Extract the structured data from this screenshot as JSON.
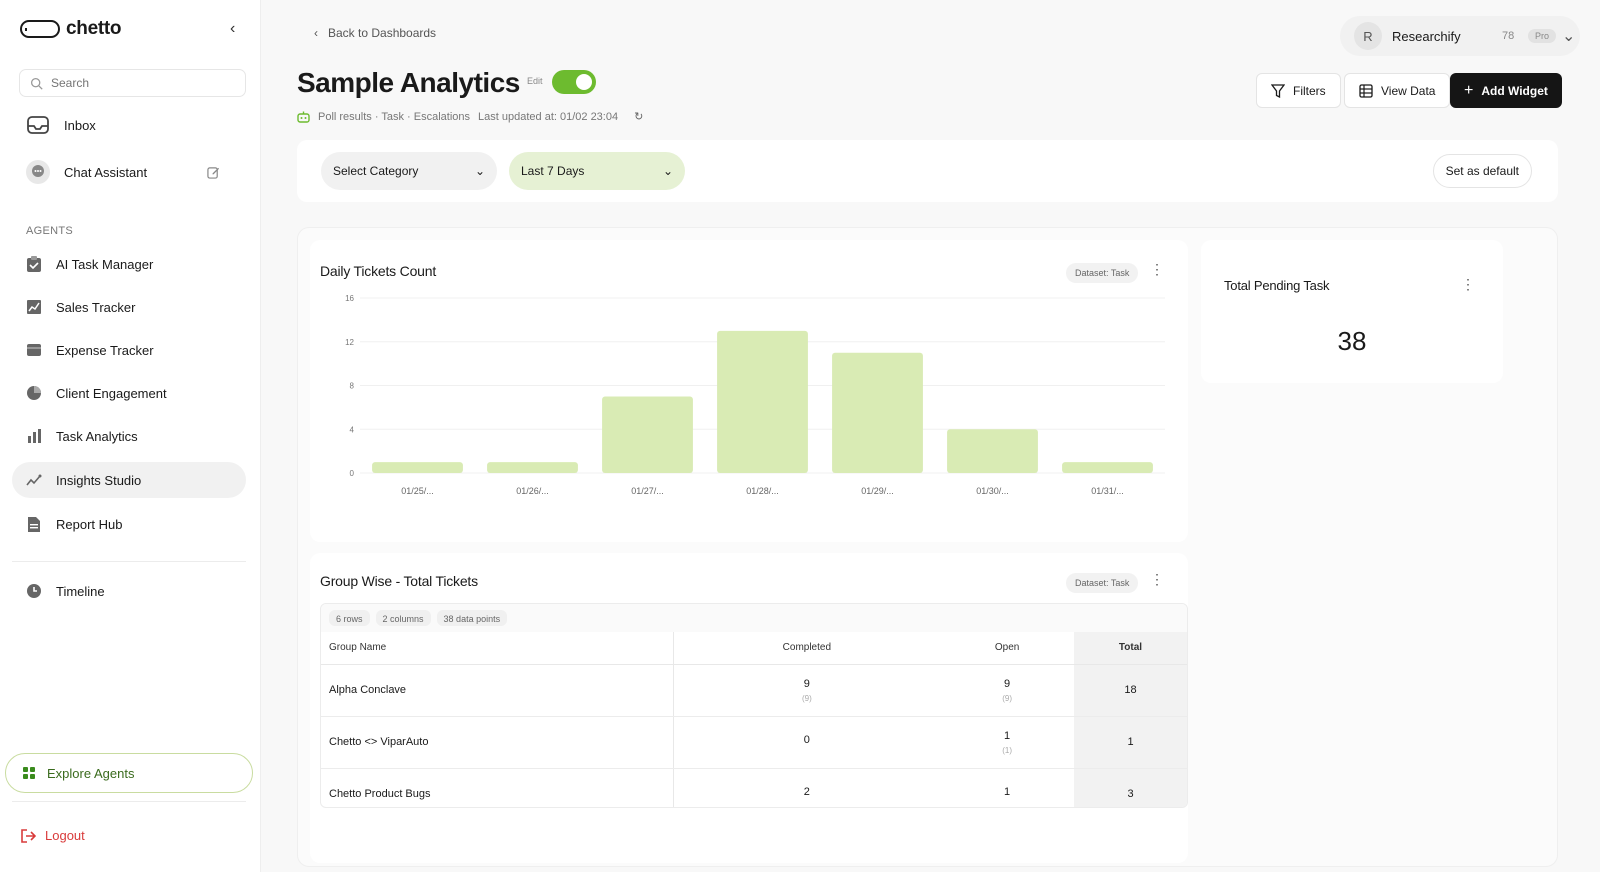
{
  "brand": {
    "name": "chetto"
  },
  "sidebar": {
    "search_placeholder": "Search",
    "top_items": [
      {
        "label": "Inbox",
        "icon": "inbox-icon"
      },
      {
        "label": "Chat Assistant",
        "icon": "chat-icon"
      }
    ],
    "section_label": "AGENTS",
    "agents": [
      {
        "label": "AI Task Manager",
        "icon": "clipboard-icon"
      },
      {
        "label": "Sales Tracker",
        "icon": "trend-chart-icon"
      },
      {
        "label": "Expense Tracker",
        "icon": "wallet-icon"
      },
      {
        "label": "Client Engagement",
        "icon": "pie-chart-icon"
      },
      {
        "label": "Task Analytics",
        "icon": "bar-chart-icon"
      },
      {
        "label": "Insights Studio",
        "icon": "insights-icon"
      },
      {
        "label": "Report Hub",
        "icon": "document-icon"
      }
    ],
    "timeline_label": "Timeline",
    "explore_label": "Explore Agents",
    "logout_label": "Logout"
  },
  "header": {
    "back_label": "Back to Dashboards",
    "title": "Sample Analytics",
    "edit_label": "Edit",
    "subline": "Poll results · Task · Escalations",
    "last_updated": "Last updated at: 01/02 23:04",
    "account": {
      "initial": "R",
      "name": "Researchify",
      "count": "78",
      "badge": "Pro"
    },
    "buttons": {
      "filters": "Filters",
      "view_data": "View Data",
      "add_widget": "Add Widget"
    }
  },
  "filters": {
    "category": "Select Category",
    "range": "Last 7 Days",
    "set_default": "Set as default"
  },
  "widgets": {
    "daily": {
      "title": "Daily Tickets Count",
      "dataset": "Dataset: Task"
    },
    "pending": {
      "title": "Total Pending Task",
      "value": "38"
    },
    "group": {
      "title": "Group Wise - Total Tickets",
      "dataset": "Dataset: Task",
      "chips": [
        "6 rows",
        "2 columns",
        "38 data points"
      ],
      "columns": [
        "Group Name",
        "Completed",
        "Open",
        "Total"
      ],
      "rows": [
        {
          "name": "Alpha Conclave",
          "completed": "9",
          "completed_sub": "(9)",
          "open": "9",
          "open_sub": "(9)",
          "total": "18"
        },
        {
          "name": "Chetto <> ViparAuto",
          "completed": "0",
          "completed_sub": "",
          "open": "1",
          "open_sub": "(1)",
          "total": "1"
        },
        {
          "name": "Chetto Product Bugs",
          "completed": "2",
          "completed_sub": "",
          "open": "1",
          "open_sub": "",
          "total": "3"
        }
      ]
    }
  },
  "colors": {
    "accent": "#6dbb2f",
    "bar": "#d9ebb4",
    "dark": "#151515",
    "danger": "#d93b3b"
  },
  "chart_data": {
    "type": "bar",
    "title": "Daily Tickets Count",
    "categories": [
      "01/25/...",
      "01/26/...",
      "01/27/...",
      "01/28/...",
      "01/29/...",
      "01/30/...",
      "01/31/..."
    ],
    "values": [
      1,
      1,
      7,
      13,
      11,
      4,
      1
    ],
    "xlabel": "",
    "ylabel": "",
    "ylim": [
      0,
      16
    ],
    "yticks": [
      0,
      4,
      8,
      12,
      16
    ],
    "grid": true
  }
}
